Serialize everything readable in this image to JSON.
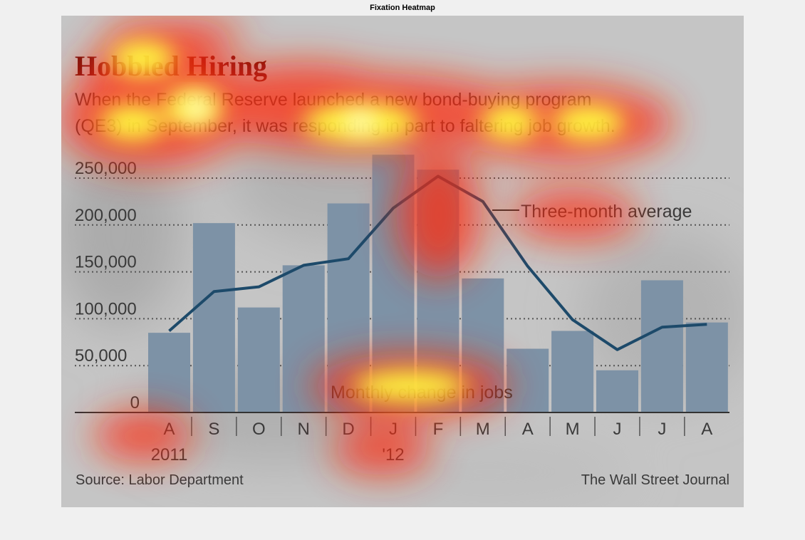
{
  "figure_title": "Fixation Heatmap",
  "chart_data": {
    "type": "bar",
    "title": "Hobbled Hiring",
    "subtitle_lines": [
      "When the Federal Reserve launched a new bond-buying program",
      "(QE3) in September, it was responding in part to faltering job growth."
    ],
    "categories": [
      "A",
      "S",
      "O",
      "N",
      "D",
      "J",
      "F",
      "M",
      "A",
      "M",
      "J",
      "J",
      "A"
    ],
    "year_labels": [
      {
        "label": "2011",
        "category_index": 0
      },
      {
        "label": "'12",
        "category_index": 5
      }
    ],
    "series": [
      {
        "name": "Monthly change in jobs",
        "type": "bar",
        "values": [
          85000,
          202000,
          112000,
          157000,
          223000,
          275000,
          259000,
          143000,
          68000,
          87000,
          45000,
          141000,
          96000
        ]
      },
      {
        "name": "Three-month average",
        "type": "line",
        "values": [
          87000,
          129000,
          134000,
          157000,
          164000,
          218000,
          252000,
          225000,
          156000,
          99000,
          67000,
          91000,
          94000
        ]
      }
    ],
    "y_ticks": [
      0,
      50000,
      100000,
      150000,
      200000,
      250000
    ],
    "y_tick_labels": [
      "0",
      "50,000",
      "100,000",
      "150,000",
      "200,000",
      "250,000"
    ],
    "ylim": [
      0,
      250000
    ],
    "grid": true,
    "source": "Source: Labor Department",
    "credit": "The Wall Street Journal",
    "colors": {
      "bar": "#7d92a6",
      "line": "#1d4a6a",
      "title": "#6a0f0f",
      "text": "#3a3a3a",
      "heat_hot": "#ffff30",
      "heat_mid": "#ff3010"
    },
    "heatmap_overlay": true
  }
}
